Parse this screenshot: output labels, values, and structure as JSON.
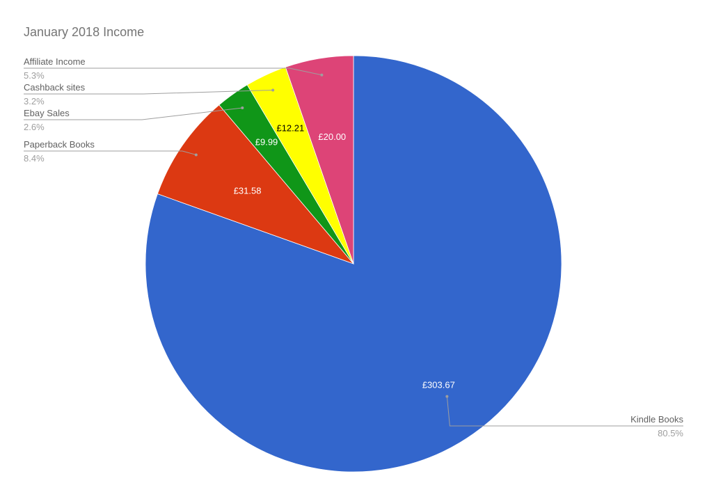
{
  "chart_data": {
    "type": "pie",
    "title": "January 2018 Income",
    "slices": [
      {
        "name": "Kindle Books",
        "value": 303.67,
        "value_label": "£303.67",
        "percent_label": "80.5%",
        "color": "#3366cc",
        "label_color": "#ffffff"
      },
      {
        "name": "Paperback Books",
        "value": 31.58,
        "value_label": "£31.58",
        "percent_label": "8.4%",
        "color": "#dc3912",
        "label_color": "#ffffff"
      },
      {
        "name": "Ebay Sales",
        "value": 9.99,
        "value_label": "£9.99",
        "percent_label": "2.6%",
        "color": "#109618",
        "label_color": "#ffffff"
      },
      {
        "name": "Cashback sites",
        "value": 12.21,
        "value_label": "£12.21",
        "percent_label": "3.2%",
        "color": "#ffff00",
        "label_color": "#000000"
      },
      {
        "name": "Affiliate Income",
        "value": 20.0,
        "value_label": "£20.00",
        "percent_label": "5.3%",
        "color": "#dd4477",
        "label_color": "#ffffff"
      }
    ],
    "start_angle": "12 o'clock",
    "direction": "clockwise",
    "legend": "labeled leader lines"
  }
}
